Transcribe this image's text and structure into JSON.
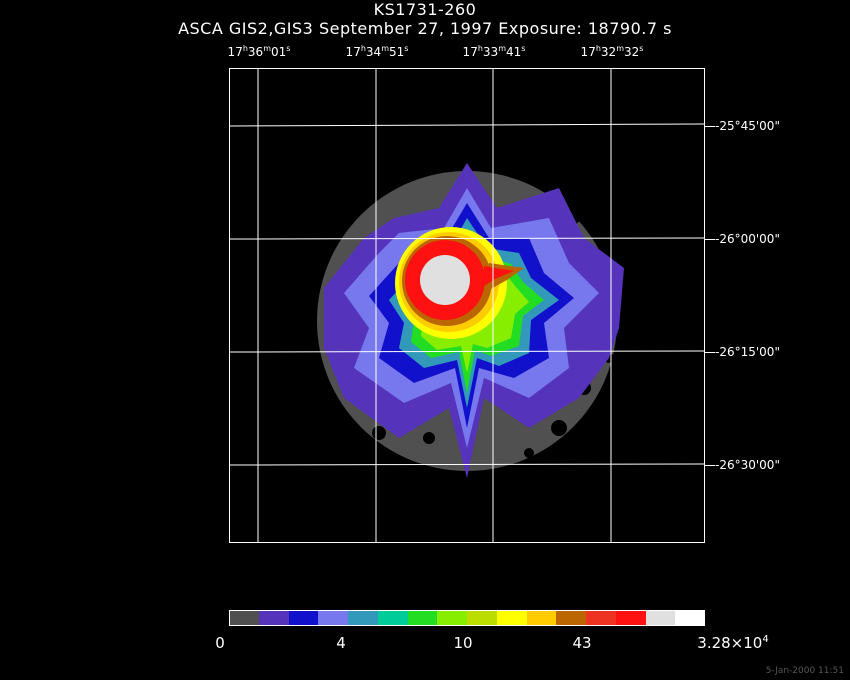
{
  "header": {
    "title": "KS1731-260",
    "subtitle": "ASCA GIS2,GIS3 September 27, 1997 Exposure: 18790.7 s"
  },
  "ra_labels": [
    {
      "h": "17",
      "m": "36",
      "s": "01"
    },
    {
      "h": "17",
      "m": "34",
      "s": "51"
    },
    {
      "h": "17",
      "m": "33",
      "s": "41"
    },
    {
      "h": "17",
      "m": "32",
      "s": "32"
    }
  ],
  "ra_units": {
    "h": "h",
    "m": "m",
    "s": "s"
  },
  "dec_labels": [
    "-25°45'00\"",
    "-26°00'00\"",
    "-26°15'00\"",
    "-26°30'00\""
  ],
  "colorbar": {
    "colors": [
      "#505050",
      "#5533bb",
      "#1111cc",
      "#7777ee",
      "#3399bb",
      "#00cc99",
      "#22dd22",
      "#88ee00",
      "#bbdd00",
      "#ffff00",
      "#ffcc00",
      "#bb6600",
      "#ee3322",
      "#ff1111",
      "#e0e0e0",
      "#ffffff"
    ],
    "labels": [
      "0",
      "4",
      "10",
      "43"
    ],
    "max_label_base": "3.28×10",
    "max_label_exp": "4"
  },
  "image_colors": {
    "background": "#000000",
    "frame": "#ffffff",
    "gray": "#505050",
    "violet": "#5533bb",
    "blue": "#1111cc",
    "lightblue": "#7777ee",
    "teal": "#3399bb",
    "green": "#22dd22",
    "lime": "#88ee00",
    "yellow": "#ffff00",
    "orange": "#ffcc00",
    "brown": "#bb6600",
    "red": "#ff1111",
    "core": "#e0e0e0"
  },
  "timestamp": "5-Jan-2000 11:51"
}
